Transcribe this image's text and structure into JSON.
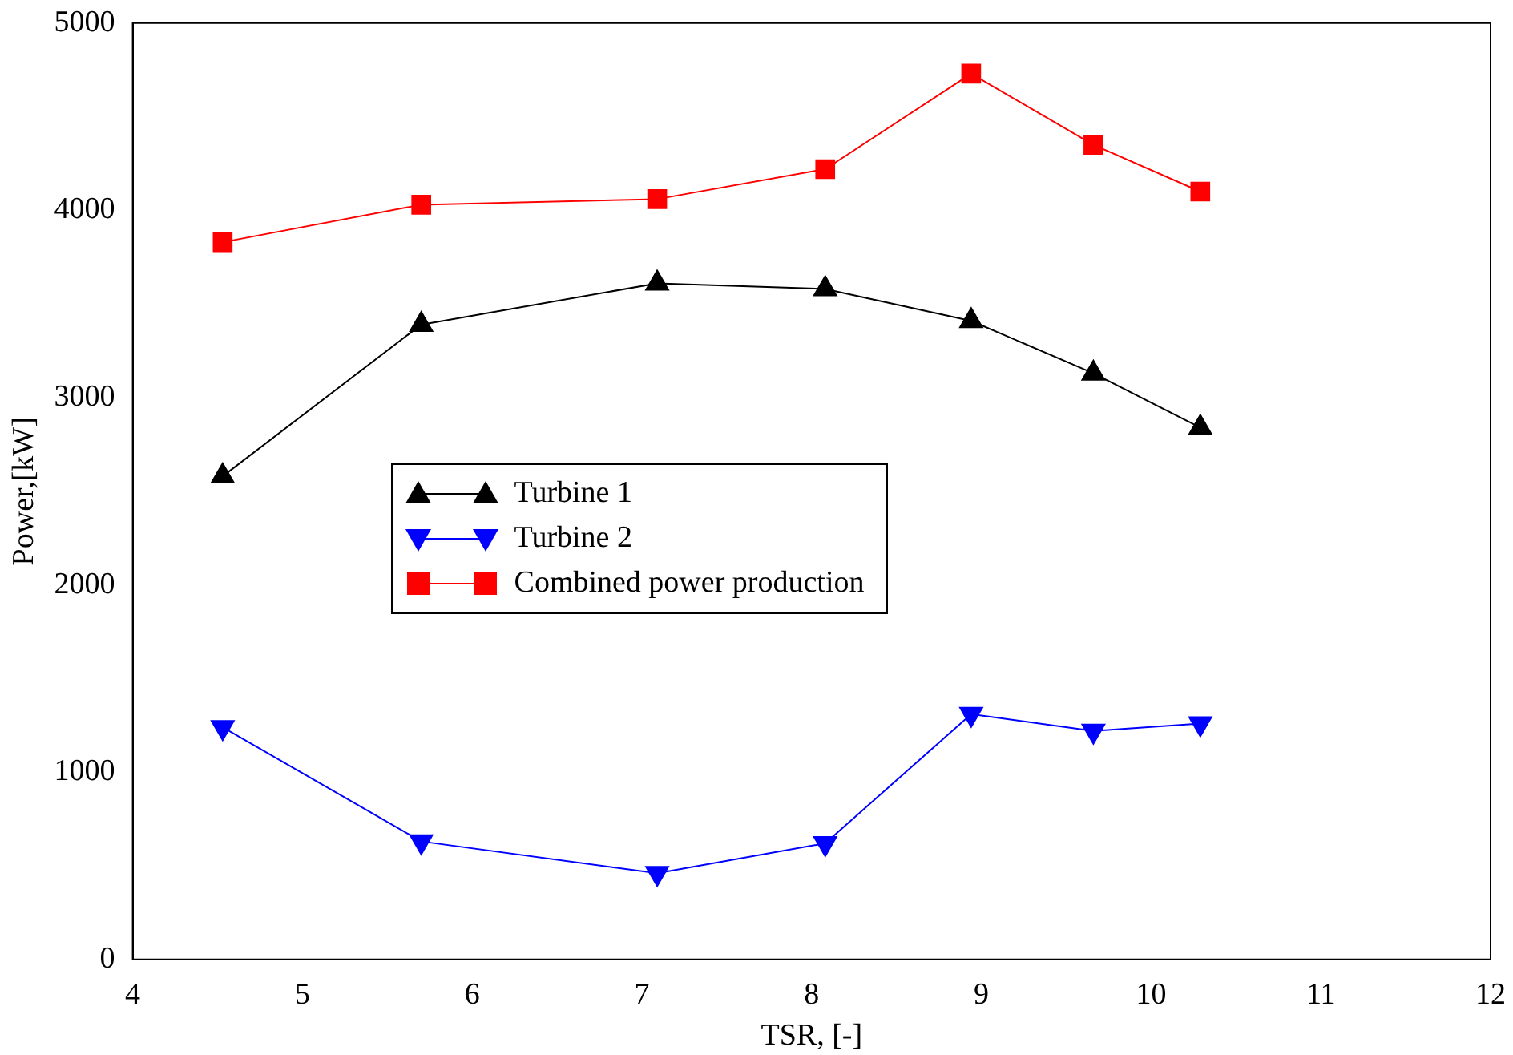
{
  "chart_data": {
    "type": "line",
    "xlabel": "TSR, [-]",
    "ylabel": "Power,[kW]",
    "xlim": [
      4,
      12
    ],
    "xticks": [
      4,
      5,
      6,
      7,
      8,
      9,
      10,
      11,
      12
    ],
    "ylim": [
      0,
      5000
    ],
    "yticks": [
      0,
      1000,
      2000,
      3000,
      4000,
      5000
    ],
    "x": [
      4.53,
      5.7,
      7.09,
      8.08,
      8.94,
      9.66,
      10.29
    ],
    "series": [
      {
        "name": "Turbine 1",
        "color": "#000000",
        "marker": "triangle",
        "values": [
          2580,
          3390,
          3610,
          3580,
          3410,
          3130,
          2840
        ]
      },
      {
        "name": "Turbine 2",
        "color": "#0000ff",
        "marker": "triangle",
        "values": [
          1240,
          630,
          460,
          620,
          1310,
          1220,
          1260
        ]
      },
      {
        "name": "Combined power production",
        "color": "#ff0000",
        "marker": "square",
        "values": [
          3830,
          4030,
          4060,
          4220,
          4730,
          4350,
          4100
        ]
      }
    ],
    "grid": false,
    "legend": "center left"
  }
}
